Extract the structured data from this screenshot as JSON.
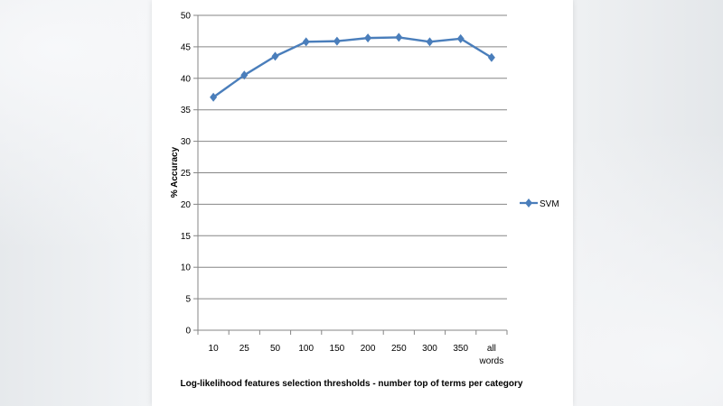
{
  "chart_data": {
    "type": "line",
    "categories": [
      "10",
      "25",
      "50",
      "100",
      "150",
      "200",
      "250",
      "300",
      "350",
      "all words"
    ],
    "category_lines": [
      [
        "10"
      ],
      [
        "25"
      ],
      [
        "50"
      ],
      [
        "100"
      ],
      [
        "150"
      ],
      [
        "200"
      ],
      [
        "250"
      ],
      [
        "300"
      ],
      [
        "350"
      ],
      [
        "all",
        "words"
      ]
    ],
    "series": [
      {
        "name": "SVM",
        "values": [
          37.0,
          40.5,
          43.5,
          45.8,
          45.9,
          46.4,
          46.5,
          45.8,
          46.3,
          43.3
        ],
        "color": "#4a7ebb"
      }
    ],
    "xlabel": "Log-likelihood features selection thresholds - number top of terms per category",
    "ylabel": "% Accuracy",
    "ylim": [
      0,
      50
    ],
    "yticks": [
      "0",
      "5",
      "10",
      "15",
      "20",
      "25",
      "30",
      "35",
      "40",
      "45",
      "50"
    ],
    "grid": true,
    "legend_position": "right",
    "marker": "diamond"
  }
}
